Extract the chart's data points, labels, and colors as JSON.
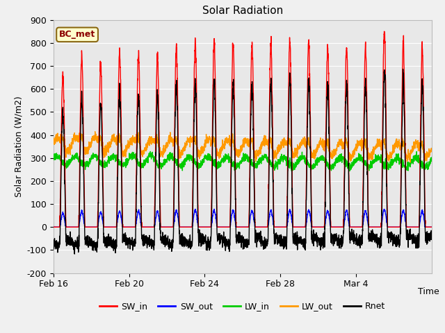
{
  "title": "Solar Radiation",
  "xlabel": "Time",
  "ylabel": "Solar Radiation (W/m2)",
  "ylim": [
    -200,
    900
  ],
  "yticks": [
    -200,
    -100,
    0,
    100,
    200,
    300,
    400,
    500,
    600,
    700,
    800,
    900
  ],
  "fig_bg_color": "#f0f0f0",
  "plot_bg_color": "#e8e8e8",
  "annotation_text": "BC_met",
  "annotation_bg": "#ffffcc",
  "annotation_border": "#8b6914",
  "series": {
    "SW_in": {
      "color": "#ff0000",
      "lw": 1.0
    },
    "SW_out": {
      "color": "#0000ff",
      "lw": 1.0
    },
    "LW_in": {
      "color": "#00cc00",
      "lw": 1.0
    },
    "LW_out": {
      "color": "#ff9900",
      "lw": 1.0
    },
    "Rnet": {
      "color": "#000000",
      "lw": 1.0
    }
  },
  "legend_labels": [
    "SW_in",
    "SW_out",
    "LW_in",
    "LW_out",
    "Rnet"
  ],
  "legend_colors": [
    "#ff0000",
    "#0000ff",
    "#00cc00",
    "#ff9900",
    "#000000"
  ],
  "tick_positions": [
    0,
    4,
    8,
    12,
    16
  ],
  "tick_labels": [
    "Feb 16",
    "Feb 20",
    "Feb 24",
    "Feb 28",
    "Mar 4"
  ],
  "n_days": 20,
  "sw_in_peaks": [
    660,
    745,
    710,
    760,
    755,
    745,
    790,
    800,
    810,
    795,
    800,
    790,
    810,
    810,
    780,
    780,
    780,
    855,
    800,
    780
  ]
}
